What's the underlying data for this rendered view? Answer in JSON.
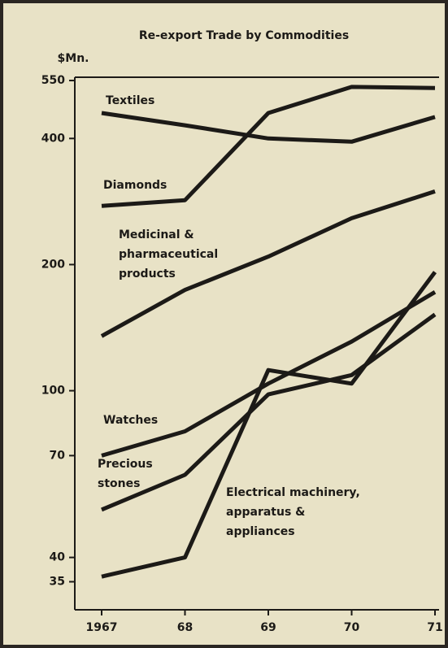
{
  "chart_data": {
    "type": "line",
    "title": "Re-export Trade by Commodities",
    "y_label": "$Mn.",
    "log_scale": true,
    "categories": [
      "1967",
      "68",
      "69",
      "70",
      "71"
    ],
    "ylim": [
      30,
      560
    ],
    "yticks": [
      35,
      40,
      70,
      100,
      200,
      400,
      550
    ],
    "series": [
      {
        "name": "Textiles",
        "color": "#1c1a17",
        "values": [
          460,
          430,
          400,
          393,
          450
        ]
      },
      {
        "name": "Diamonds",
        "color": "#1c1a17",
        "values": [
          276,
          285,
          460,
          531,
          528
        ]
      },
      {
        "name": "Medicinal & pharmaceutical products",
        "color": "#1c1a17",
        "values": [
          135,
          174,
          209,
          258,
          299
        ]
      },
      {
        "name": "Watches",
        "color": "#1c1a17",
        "values": [
          70,
          80,
          104,
          131,
          172
        ]
      },
      {
        "name": "Precious stones",
        "color": "#1c1a17",
        "values": [
          52,
          63,
          98,
          109,
          152
        ]
      },
      {
        "name": "Electrical machinery, apparatus & appliances",
        "color": "#1c1a17",
        "values": [
          36,
          40,
          112,
          104,
          192
        ]
      }
    ]
  }
}
